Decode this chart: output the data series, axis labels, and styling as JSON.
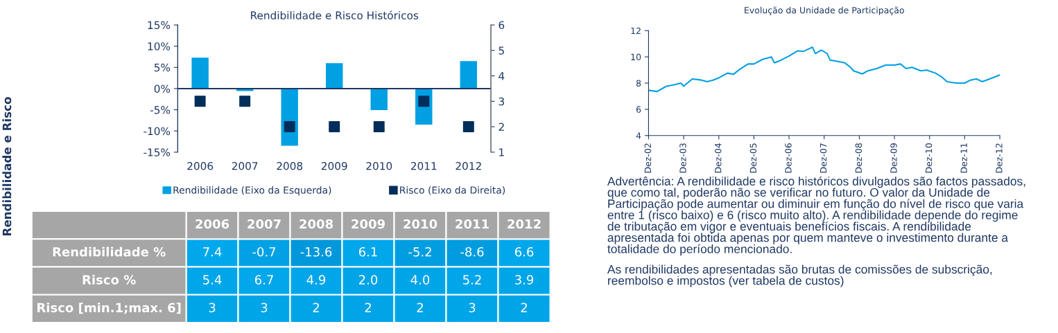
{
  "chart_data": [
    {
      "type": "bar",
      "title": "Rendibilidade e Risco Históricos",
      "categories": [
        "2006",
        "2007",
        "2008",
        "2009",
        "2010",
        "2011",
        "2012"
      ],
      "series": [
        {
          "name": "Rendibilidade (Eixo da Esquerda)",
          "type": "bar",
          "color": "#00a0e3",
          "values": [
            7.4,
            -0.7,
            -13.6,
            6.1,
            -5.2,
            -8.6,
            6.6
          ]
        },
        {
          "name": "Risco (Eixo da Direita)",
          "type": "scatter",
          "axis": "y2",
          "marker": "square",
          "color": "#002d5a",
          "values": [
            3,
            3,
            2,
            2,
            2,
            3,
            2
          ]
        }
      ],
      "ylim": [
        -15,
        15
      ],
      "yticks": [
        {
          "value": -15,
          "label": "-15%"
        },
        {
          "value": -10,
          "label": "-10%"
        },
        {
          "value": -5,
          "label": "-5%"
        },
        {
          "value": 0,
          "label": "0%"
        },
        {
          "value": 5,
          "label": "5%"
        },
        {
          "value": 10,
          "label": "10%"
        },
        {
          "value": 15,
          "label": "15%"
        }
      ],
      "y2lim": [
        1,
        6
      ],
      "y2ticks": [
        1,
        2,
        3,
        4,
        5,
        6
      ],
      "legend": "bottom",
      "grid": false,
      "ref_lines": [
        {
          "axis": "y",
          "value": 0,
          "color": "#1f3864"
        }
      ],
      "annotations": [
        "Rendibilidade e Risco"
      ]
    },
    {
      "type": "heatmap",
      "categories": [
        "2006",
        "2007",
        "2008",
        "2009",
        "2010",
        "2011",
        "2012"
      ],
      "y_categories": [
        "Rendibilidade %",
        "Risco %",
        "Risco [min.1;max. 6]"
      ],
      "cells": [
        [
          7.4,
          -0.7,
          -13.6,
          6.1,
          -5.2,
          -8.6,
          6.6
        ],
        [
          5.4,
          6.7,
          4.9,
          2.0,
          4.0,
          5.2,
          3.9
        ],
        [
          3,
          3,
          2,
          2,
          2,
          3,
          2
        ]
      ],
      "cell_labels": [
        [
          "7.4",
          "-0.7",
          "-13.6",
          "6.1",
          "-5.2",
          "-8.6",
          "6.6"
        ],
        [
          "5.4",
          "6.7",
          "4.9",
          "2.0",
          "4.0",
          "5.2",
          "3.9"
        ],
        [
          "3",
          "3",
          "2",
          "2",
          "2",
          "3",
          "2"
        ]
      ]
    },
    {
      "type": "line",
      "title": "Evolução da Unidade de Participação",
      "x": [
        "2002-12",
        "2003-03",
        "2003-06",
        "2003-09",
        "2003-11",
        "2003-12",
        "2004-03",
        "2004-06",
        "2004-08",
        "2004-10",
        "2004-12",
        "2005-03",
        "2005-05",
        "2005-07",
        "2005-10",
        "2005-12",
        "2006-03",
        "2006-06",
        "2006-07",
        "2006-09",
        "2006-12",
        "2007-03",
        "2007-05",
        "2007-08",
        "2007-09",
        "2007-11",
        "2008-01",
        "2008-02",
        "2008-05",
        "2008-07",
        "2008-09",
        "2008-10",
        "2009-01",
        "2009-03",
        "2009-06",
        "2009-09",
        "2009-12",
        "2010-02",
        "2010-04",
        "2010-06",
        "2010-09",
        "2010-11",
        "2011-02",
        "2011-04",
        "2011-06",
        "2011-09",
        "2011-12",
        "2012-02",
        "2012-04",
        "2012-06",
        "2012-09",
        "2012-12"
      ],
      "series": [
        {
          "color": "#00a0e3",
          "values": [
            7.45,
            7.36,
            7.75,
            7.88,
            8.0,
            7.76,
            8.32,
            8.23,
            8.11,
            8.23,
            8.4,
            8.76,
            8.67,
            9.02,
            9.46,
            9.46,
            9.81,
            9.99,
            9.55,
            9.72,
            10.07,
            10.46,
            10.42,
            10.74,
            10.25,
            10.51,
            10.25,
            9.76,
            9.64,
            9.55,
            9.2,
            8.94,
            8.7,
            8.94,
            9.11,
            9.37,
            9.37,
            9.46,
            9.11,
            9.2,
            8.94,
            8.99,
            8.76,
            8.5,
            8.11,
            8.0,
            8.0,
            8.23,
            8.32,
            8.11,
            8.36,
            8.62
          ]
        }
      ],
      "xlim": [
        "2002-12",
        "2012-12"
      ],
      "xticks": [
        {
          "value": "2002-12",
          "label": "Dez-02"
        },
        {
          "value": "2003-12",
          "label": "Dez-03"
        },
        {
          "value": "2004-12",
          "label": "Dez-04"
        },
        {
          "value": "2005-12",
          "label": "Dez-05"
        },
        {
          "value": "2006-12",
          "label": "Dez-06"
        },
        {
          "value": "2007-12",
          "label": "Dez-07"
        },
        {
          "value": "2008-12",
          "label": "Dez-08"
        },
        {
          "value": "2009-12",
          "label": "Dez-09"
        },
        {
          "value": "2010-12",
          "label": "Dez-10"
        },
        {
          "value": "2011-12",
          "label": "Dez-11"
        },
        {
          "value": "2012-12",
          "label": "Dez-12"
        }
      ],
      "ylim": [
        4,
        12
      ],
      "yticks": [
        4,
        6,
        8,
        10,
        12
      ],
      "grid": false,
      "legend": false,
      "annotations": [
        "Advertência: A rendibilidade e risco históricos divulgados são factos passados, que como tal, poderão não se verificar no futuro. O valor da Unidade de Participação pode aumentar ou diminuir em função do nível de risco que varia entre 1 (risco baixo) e 6 (risco muito alto). A rendibilidade depende do regime de tributação em vigor e eventuais benefícios fiscais. A rendibilidade apresentada foi obtida apenas por quem manteve o investimento durante a totalidade do período mencionado.",
        "As rendibilidades apresentadas são brutas de comissões de subscrição, reembolso e impostos (ver tabela de custos)"
      ]
    }
  ]
}
